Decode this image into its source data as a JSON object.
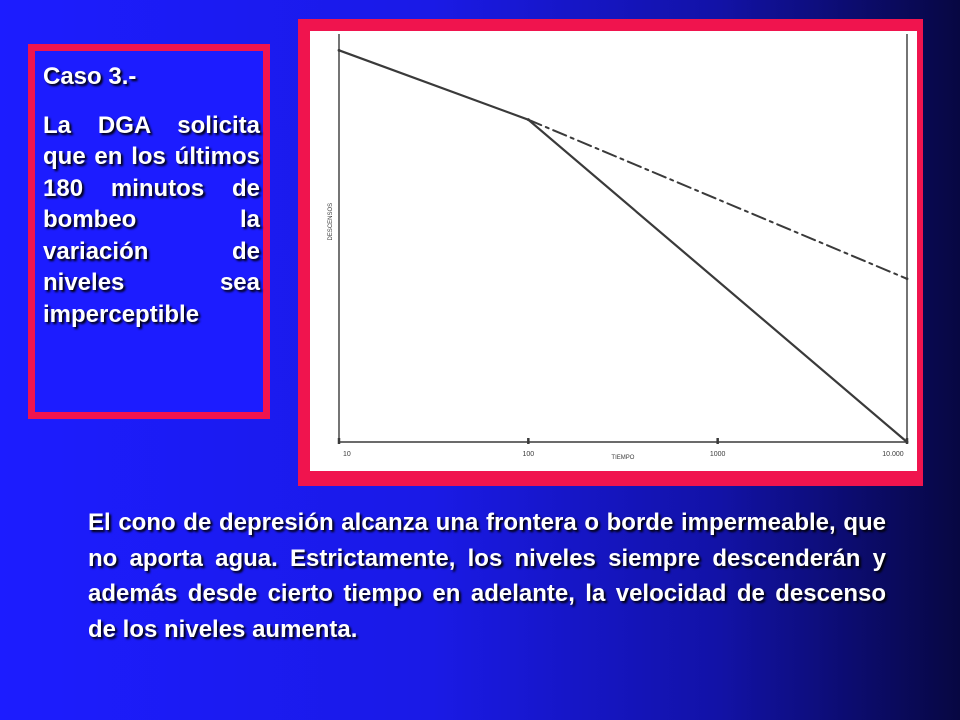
{
  "case_box": {
    "title": "Caso 3.-",
    "body": "La DGA solicita que en los últimos 180 minutos de bombeo la variación de niveles sea imperceptible"
  },
  "bottom_text": "El cono de depresión alcanza una frontera o borde impermeable, que no aporta agua. Estrictamente, los niveles siempre descenderán y además desde cierto tiempo en adelante, la velocidad de descenso de los niveles aumenta.",
  "colors": {
    "background": "#1c1cff",
    "box_border": "#f0144e",
    "text": "#ffffff",
    "chart_ink": "#3a3a3a"
  },
  "chart_data": {
    "type": "line",
    "xlabel": "TIEMPO",
    "ylabel": "DESCENSOS",
    "x_scale": "log",
    "xlim": [
      10,
      10000
    ],
    "x_ticks": [
      10,
      100,
      1000,
      10000
    ],
    "x_tick_labels": [
      "10",
      "100",
      "1000",
      "10.000"
    ],
    "ylim": [
      0,
      1
    ],
    "y_inverted": true,
    "y_tick_labels": [],
    "grid": false,
    "series": [
      {
        "style": "solid",
        "x": [
          10,
          100,
          10000
        ],
        "y": [
          0.04,
          0.21,
          1.0
        ]
      },
      {
        "style": "dashed",
        "x": [
          100,
          10000
        ],
        "y": [
          0.21,
          0.6
        ]
      }
    ]
  }
}
